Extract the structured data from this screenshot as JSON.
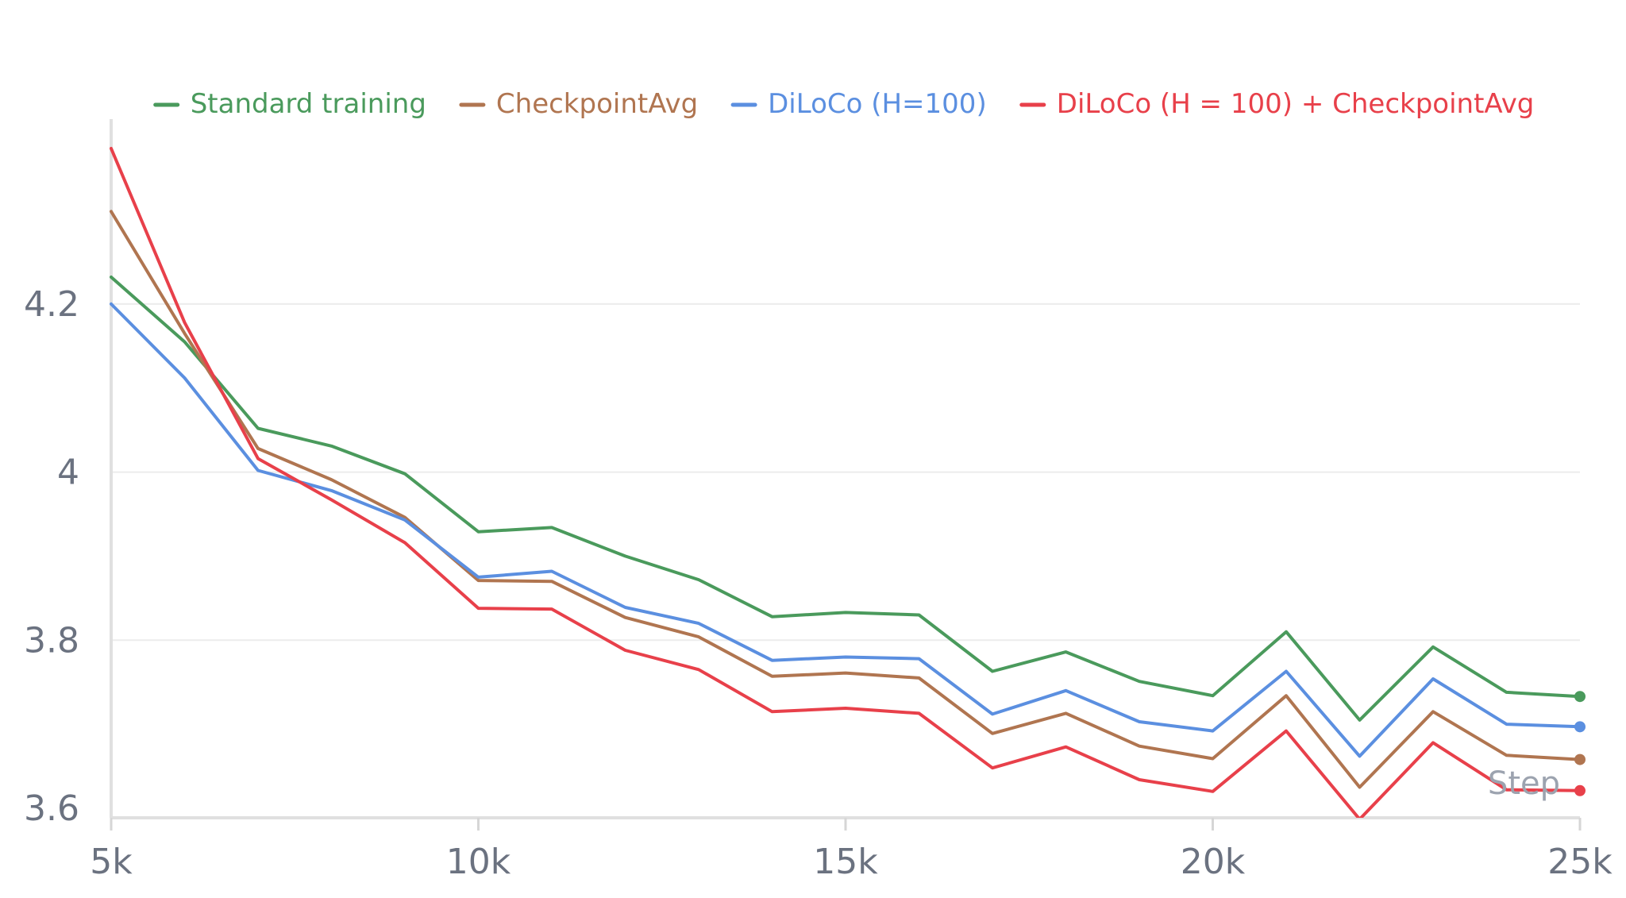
{
  "chart_data": {
    "type": "line",
    "xlabel": "Step",
    "ylabel": "",
    "xlim": [
      5000,
      25000
    ],
    "ylim": [
      3.6,
      4.42
    ],
    "x_ticks": [
      {
        "value": 5000,
        "label": "5k"
      },
      {
        "value": 10000,
        "label": "10k"
      },
      {
        "value": 15000,
        "label": "15k"
      },
      {
        "value": 20000,
        "label": "20k"
      },
      {
        "value": 25000,
        "label": "25k"
      }
    ],
    "y_ticks": [
      {
        "value": 3.6,
        "label": "3.6"
      },
      {
        "value": 3.8,
        "label": "3.8"
      },
      {
        "value": 4.0,
        "label": "4"
      },
      {
        "value": 4.2,
        "label": "4.2"
      }
    ],
    "grid": true,
    "legend_position": "top",
    "x": [
      5000,
      6000,
      7000,
      8000,
      9000,
      10000,
      11000,
      12000,
      13000,
      14000,
      15000,
      16000,
      17000,
      18000,
      19000,
      20000,
      21000,
      22000,
      23000,
      24000,
      25000
    ],
    "series": [
      {
        "name": "Standard training",
        "color": "#4a9a5c",
        "values": [
          4.232,
          4.155,
          4.052,
          4.031,
          3.998,
          3.929,
          3.934,
          3.9,
          3.872,
          3.828,
          3.833,
          3.83,
          3.763,
          3.786,
          3.751,
          3.734,
          3.81,
          3.705,
          3.792,
          3.738,
          3.733
        ]
      },
      {
        "name": "CheckpointAvg",
        "color": "#b07550",
        "values": [
          4.31,
          4.165,
          4.028,
          3.991,
          3.946,
          3.871,
          3.87,
          3.827,
          3.804,
          3.757,
          3.761,
          3.755,
          3.689,
          3.713,
          3.674,
          3.659,
          3.734,
          3.625,
          3.715,
          3.663,
          3.658
        ]
      },
      {
        "name": "DiLoCo (H=100)",
        "color": "#5b8fe0",
        "values": [
          4.2,
          4.112,
          4.002,
          3.978,
          3.943,
          3.875,
          3.882,
          3.839,
          3.82,
          3.776,
          3.78,
          3.778,
          3.712,
          3.74,
          3.703,
          3.692,
          3.763,
          3.662,
          3.754,
          3.7,
          3.697
        ]
      },
      {
        "name": "DiLoCo (H = 100) + CheckpointAvg",
        "color": "#e8404a",
        "values": [
          4.385,
          4.178,
          4.016,
          3.967,
          3.916,
          3.838,
          3.837,
          3.788,
          3.765,
          3.715,
          3.719,
          3.713,
          3.648,
          3.673,
          3.634,
          3.62,
          3.692,
          3.587,
          3.678,
          3.622,
          3.621
        ]
      }
    ]
  }
}
